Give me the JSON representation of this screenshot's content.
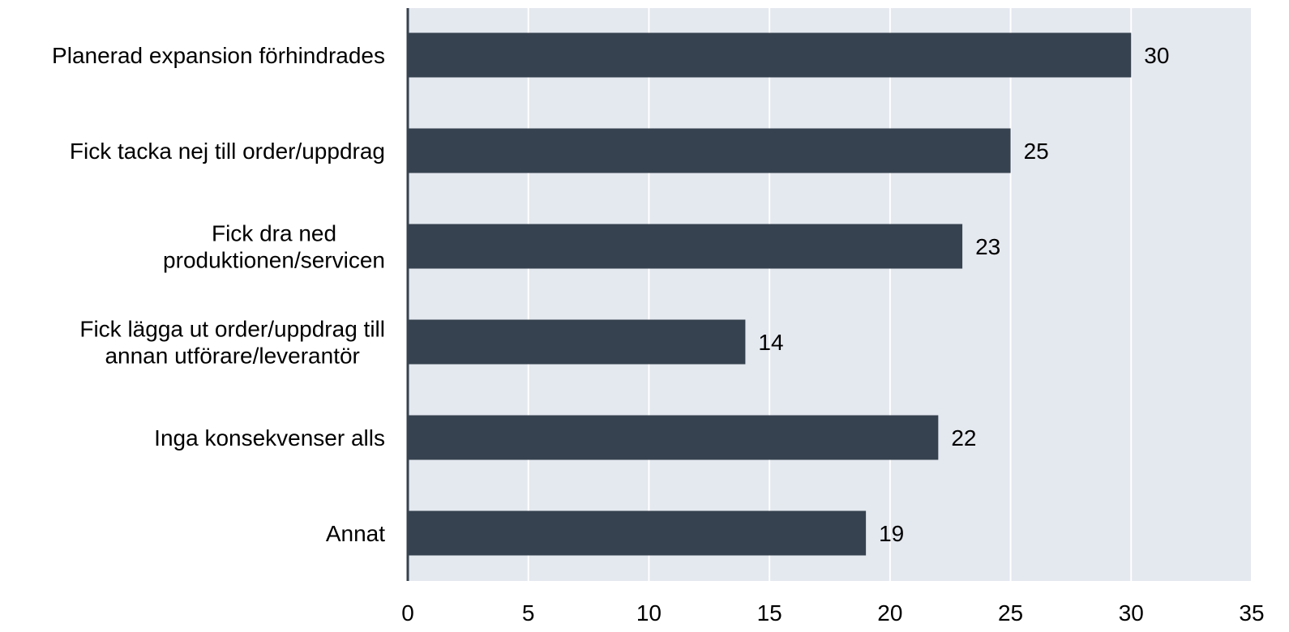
{
  "chart_data": {
    "type": "bar",
    "orientation": "horizontal",
    "categories": [
      [
        "Planerad expansion förhindrades"
      ],
      [
        "Fick tacka nej till order/uppdrag"
      ],
      [
        "Fick dra ned",
        "produktionen/servicen"
      ],
      [
        "Fick lägga ut order/uppdrag till",
        "annan utförare/leverantör"
      ],
      [
        "Inga konsekvenser alls"
      ],
      [
        "Annat"
      ]
    ],
    "values": [
      30,
      25,
      23,
      14,
      22,
      19
    ],
    "value_labels": [
      "30",
      "25",
      "23",
      "14",
      "22",
      "19"
    ],
    "xlim": [
      0,
      35
    ],
    "xticks": [
      0,
      5,
      10,
      15,
      20,
      25,
      30,
      35
    ],
    "xtick_labels": [
      "0",
      "5",
      "10",
      "15",
      "20",
      "25",
      "30",
      "35"
    ],
    "grid": true,
    "legend": "none",
    "title": "",
    "xlabel": "",
    "ylabel": "",
    "colors": {
      "bar": "#36424f",
      "plot_background": "#e4e8ef",
      "gridline": "#ffffff",
      "axis": "#36424f"
    }
  }
}
